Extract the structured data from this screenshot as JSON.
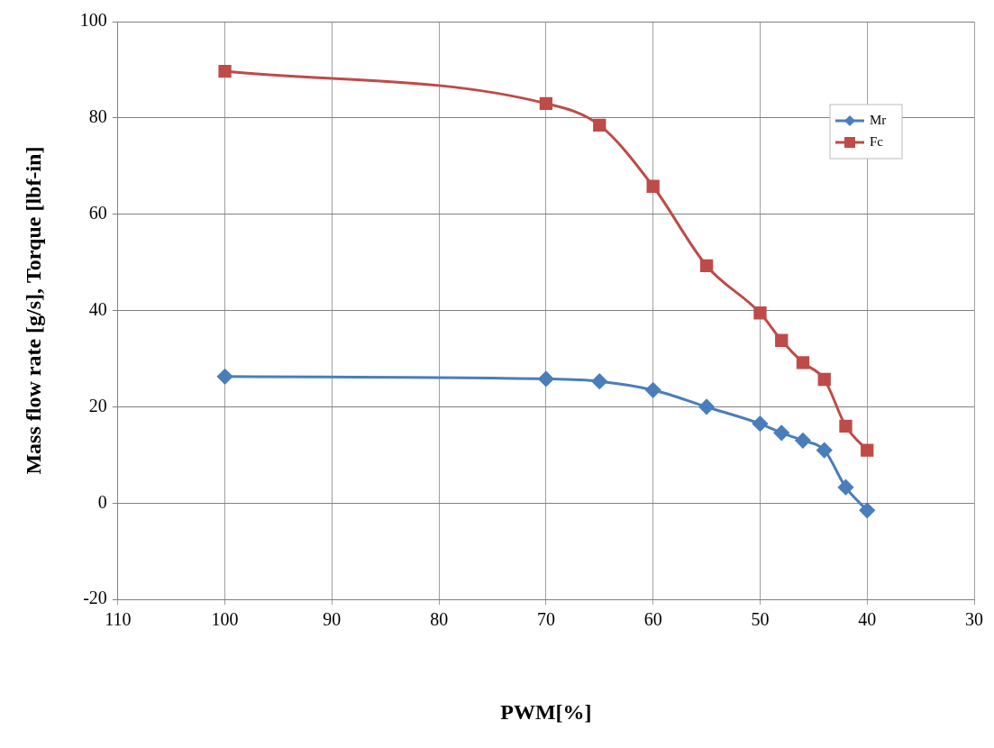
{
  "chart_data": {
    "type": "line",
    "x_label": "PWM[%]",
    "y_label": "Mass flow rate [g/s], Torque [lbf-in]",
    "x": [
      100,
      70,
      65,
      60,
      55,
      50,
      48,
      46,
      44,
      42,
      40
    ],
    "series": [
      {
        "name": "Mr",
        "color": "#4a7ebb",
        "marker": "diamond",
        "line_style": "smooth",
        "values": [
          26.3,
          25.8,
          25.3,
          23.5,
          20.0,
          16.5,
          14.6,
          13.0,
          11.0,
          3.3,
          -1.5
        ]
      },
      {
        "name": "Fc",
        "color": "#be4b48",
        "marker": "square",
        "line_style": "smooth",
        "values": [
          89.7,
          83.0,
          78.5,
          65.8,
          49.3,
          39.5,
          33.8,
          29.2,
          25.7,
          16.0,
          11.0
        ]
      }
    ],
    "xlim": [
      30,
      110
    ],
    "xticks": [
      30,
      40,
      50,
      60,
      70,
      80,
      90,
      100,
      110
    ],
    "ylim": [
      -20,
      100
    ],
    "yticks": [
      -20,
      0,
      20,
      40,
      60,
      80,
      100
    ],
    "x_reversed": true,
    "grid": true,
    "legend": "top-right"
  }
}
